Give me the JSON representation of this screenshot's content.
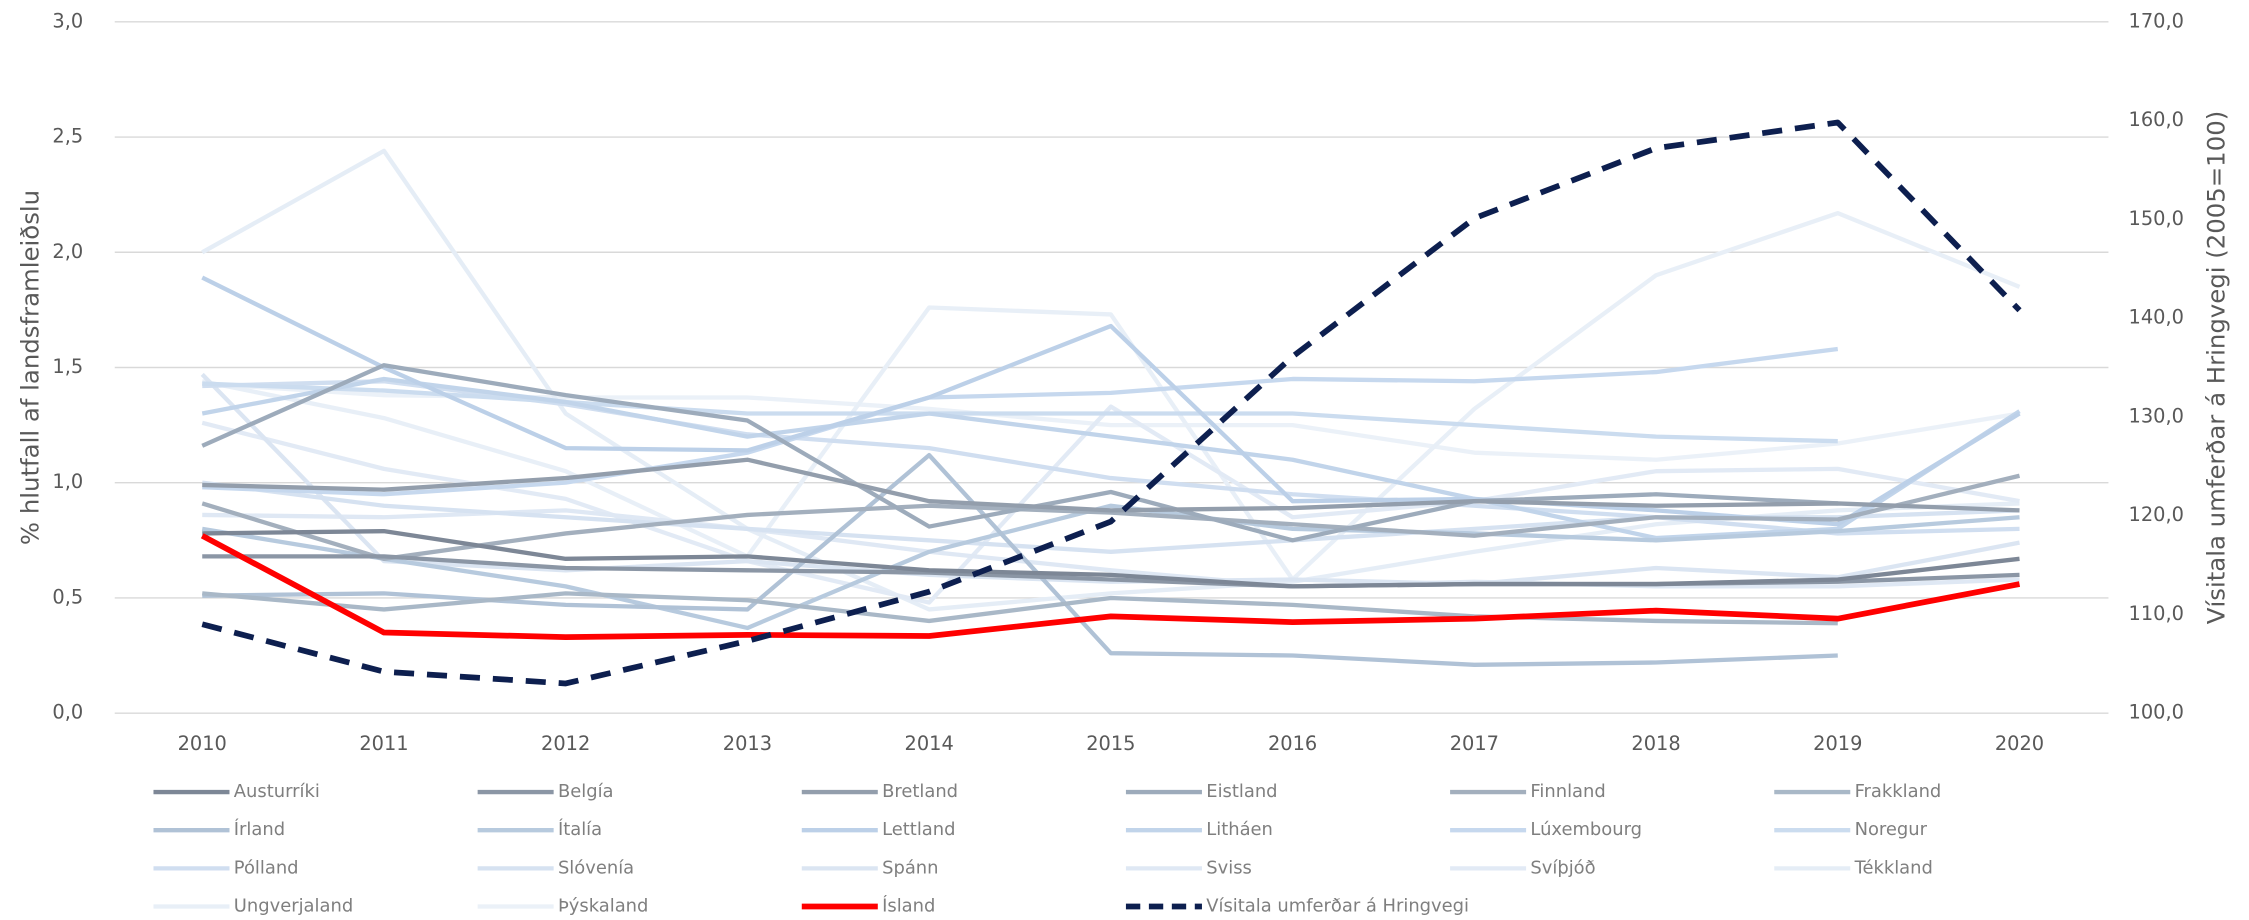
{
  "chart_data": {
    "type": "line",
    "ylabel": "% hlutfall af landsframleiðslu",
    "y2label": "Vísitala umferðar á Hringvegi (2005=100)",
    "categories": [
      "2010",
      "2011",
      "2012",
      "2013",
      "2014",
      "2015",
      "2016",
      "2017",
      "2018",
      "2019",
      "2020"
    ],
    "ylim": [
      0,
      3
    ],
    "yticks": [
      {
        "value": 0,
        "label": "0,0"
      },
      {
        "value": 0.5,
        "label": "0,5"
      },
      {
        "value": 1,
        "label": "1,0"
      },
      {
        "value": 1.5,
        "label": "1,5"
      },
      {
        "value": 2,
        "label": "2,0"
      },
      {
        "value": 2.5,
        "label": "2,5"
      },
      {
        "value": 3,
        "label": "3,0"
      }
    ],
    "y2lim": [
      100,
      170
    ],
    "y2ticks": [
      {
        "value": 100,
        "label": "100,0"
      },
      {
        "value": 110,
        "label": "110,0"
      },
      {
        "value": 120,
        "label": "120,0"
      },
      {
        "value": 130,
        "label": "130,0"
      },
      {
        "value": 140,
        "label": "140,0"
      },
      {
        "value": 150,
        "label": "150,0"
      },
      {
        "value": 160,
        "label": "160,0"
      },
      {
        "value": 170,
        "label": "170,0"
      }
    ],
    "grid": true,
    "legend": "bottom",
    "series": [
      {
        "name": "Austurríki",
        "color": "#7d8796",
        "values": [
          0.78,
          0.79,
          0.67,
          0.68,
          0.62,
          0.6,
          0.55,
          0.56,
          0.56,
          0.58,
          0.67
        ]
      },
      {
        "name": "Belgía",
        "color": "#8b96a5",
        "values": [
          0.68,
          0.68,
          0.63,
          0.62,
          0.61,
          0.58,
          0.55,
          0.56,
          0.56,
          0.57,
          0.6
        ]
      },
      {
        "name": "Bretland",
        "color": "#939eac",
        "values": [
          0.99,
          0.97,
          1.02,
          1.1,
          0.92,
          0.88,
          0.89,
          0.92,
          0.9,
          0.91,
          0.88
        ]
      },
      {
        "name": "Eistland",
        "color": "#9dabbb",
        "values": [
          1.16,
          1.51,
          1.38,
          1.27,
          0.81,
          0.96,
          0.75,
          0.92,
          0.95,
          0.91,
          null
        ]
      },
      {
        "name": "Finnland",
        "color": "#a3afbd",
        "values": [
          0.91,
          0.67,
          0.78,
          0.86,
          0.9,
          0.87,
          0.82,
          0.77,
          0.85,
          0.84,
          1.03
        ]
      },
      {
        "name": "Frakkland",
        "color": "#a9b8c7",
        "values": [
          0.52,
          0.45,
          0.52,
          0.49,
          0.4,
          0.5,
          0.47,
          0.42,
          0.4,
          0.39,
          null
        ]
      },
      {
        "name": "Írland",
        "color": "#b0c2d6",
        "values": [
          0.51,
          0.52,
          0.47,
          0.45,
          1.12,
          0.26,
          0.25,
          0.21,
          0.22,
          0.25,
          null
        ]
      },
      {
        "name": "Ítalía",
        "color": "#b7cade",
        "values": [
          0.8,
          0.67,
          0.55,
          0.37,
          0.7,
          0.9,
          0.8,
          0.78,
          0.75,
          0.79,
          0.85
        ]
      },
      {
        "name": "Lettland",
        "color": "#bcd0e8",
        "values": [
          1.89,
          1.5,
          1.15,
          1.14,
          1.37,
          1.68,
          0.92,
          0.93,
          0.88,
          0.82,
          1.3
        ]
      },
      {
        "name": "Litháen",
        "color": "#c1d4ea",
        "values": [
          1.3,
          1.45,
          1.35,
          1.2,
          1.3,
          1.2,
          1.1,
          0.93,
          0.76,
          0.8,
          1.31
        ]
      },
      {
        "name": "Lúxembourg",
        "color": "#c6d8ee",
        "values": [
          0.98,
          0.95,
          1.0,
          1.13,
          1.37,
          1.39,
          1.45,
          1.44,
          1.48,
          1.58,
          null
        ]
      },
      {
        "name": "Noregur",
        "color": "#cbdcef",
        "values": [
          1.43,
          1.4,
          1.35,
          1.3,
          1.3,
          1.3,
          1.3,
          1.25,
          1.2,
          1.18,
          null
        ]
      },
      {
        "name": "Pólland",
        "color": "#d0def0",
        "values": [
          1.42,
          1.44,
          1.34,
          1.21,
          1.15,
          1.02,
          0.95,
          0.9,
          0.85,
          0.78,
          0.8
        ]
      },
      {
        "name": "Slóvenía",
        "color": "#d6e2f1",
        "values": [
          1.0,
          0.9,
          0.85,
          0.8,
          0.75,
          0.7,
          0.75,
          0.8,
          0.85,
          0.85,
          0.88
        ]
      },
      {
        "name": "Spánn",
        "color": "#dbe5f2",
        "values": [
          1.47,
          0.66,
          0.62,
          0.66,
          0.6,
          0.57,
          0.58,
          0.56,
          0.63,
          0.59,
          0.74
        ]
      },
      {
        "name": "Sviss",
        "color": "#dfe8f4",
        "values": [
          0.86,
          0.85,
          0.88,
          0.8,
          0.7,
          0.62,
          0.55,
          0.57,
          0.55,
          0.55,
          0.58
        ]
      },
      {
        "name": "Svíþjóð",
        "color": "#e2eaf5",
        "values": [
          1.26,
          1.06,
          0.93,
          0.66,
          0.48,
          1.33,
          0.85,
          0.92,
          1.05,
          1.06,
          0.92
        ]
      },
      {
        "name": "Tékkland",
        "color": "#e5edf6",
        "values": [
          2.0,
          2.44,
          1.3,
          0.8,
          0.45,
          0.52,
          0.57,
          0.7,
          0.82,
          0.88,
          0.91
        ]
      },
      {
        "name": "Ungverjaland",
        "color": "#e8eff7",
        "values": [
          1.44,
          1.28,
          1.05,
          0.68,
          1.76,
          1.73,
          0.58,
          1.32,
          1.9,
          2.17,
          1.85
        ]
      },
      {
        "name": "Þýskaland",
        "color": "#ebf1f8",
        "values": [
          1.43,
          1.38,
          1.37,
          1.37,
          1.32,
          1.25,
          1.25,
          1.13,
          1.1,
          1.17,
          1.3
        ]
      },
      {
        "name": "Ísland",
        "color": "#ff0000",
        "emphasis": true,
        "values": [
          0.77,
          0.35,
          0.33,
          0.34,
          0.335,
          0.42,
          0.395,
          0.41,
          0.445,
          0.41,
          0.56
        ]
      },
      {
        "name": "Vísitala umferðar á Hringvegi",
        "color": "#0d1f4f",
        "axis": "y2",
        "dashed": true,
        "emphasis": true,
        "values": [
          109.0,
          104.2,
          103.0,
          107.3,
          112.3,
          119.4,
          136.1,
          150.1,
          157.2,
          159.8,
          140.8
        ]
      }
    ]
  }
}
